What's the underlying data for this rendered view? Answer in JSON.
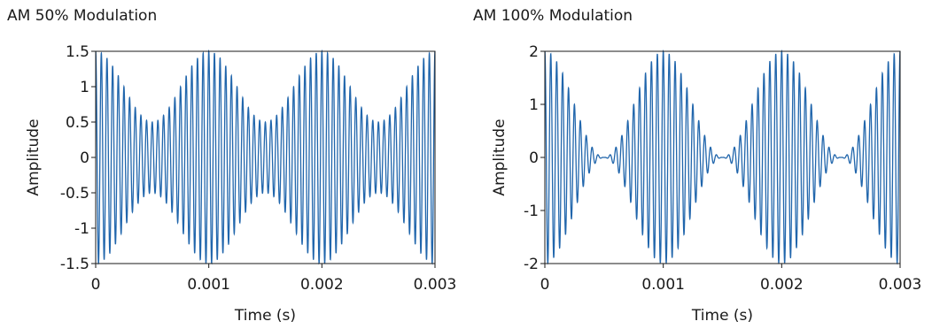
{
  "chart_data": [
    {
      "type": "line",
      "title": "AM 50% Modulation",
      "xlabel": "Time (s)",
      "ylabel": "Amplitude",
      "xlim": [
        0,
        0.003
      ],
      "ylim": [
        -1.5,
        1.5
      ],
      "xticks": [
        0,
        0.001,
        0.002,
        0.003
      ],
      "xtick_labels": [
        "0",
        "0.001",
        "0.002",
        "0.003"
      ],
      "yticks": [
        1.5,
        1,
        0.5,
        0,
        -0.5,
        -1,
        -1.5
      ],
      "ytick_labels": [
        "1.5",
        "1",
        "0.5",
        "0",
        "-0.5",
        "-1",
        "-1.5"
      ],
      "grid": false,
      "color": "#2166ac",
      "signal": {
        "carrier_frequency_hz": 20000,
        "message_frequency_hz": 1000,
        "modulation_index": 0.5,
        "carrier_amplitude": 1
      }
    },
    {
      "type": "line",
      "title": "AM 100% Modulation",
      "xlabel": "Time (s)",
      "ylabel": "Amplitude",
      "xlim": [
        0,
        0.003
      ],
      "ylim": [
        -2,
        2
      ],
      "xticks": [
        0,
        0.001,
        0.002,
        0.003
      ],
      "xtick_labels": [
        "0",
        "0.001",
        "0.002",
        "0.003"
      ],
      "yticks": [
        2,
        1,
        0,
        -1,
        -2
      ],
      "ytick_labels": [
        "2",
        "1",
        "0",
        "-1",
        "-2"
      ],
      "grid": false,
      "color": "#2166ac",
      "signal": {
        "carrier_frequency_hz": 20000,
        "message_frequency_hz": 1000,
        "modulation_index": 1,
        "carrier_amplitude": 1
      }
    }
  ]
}
